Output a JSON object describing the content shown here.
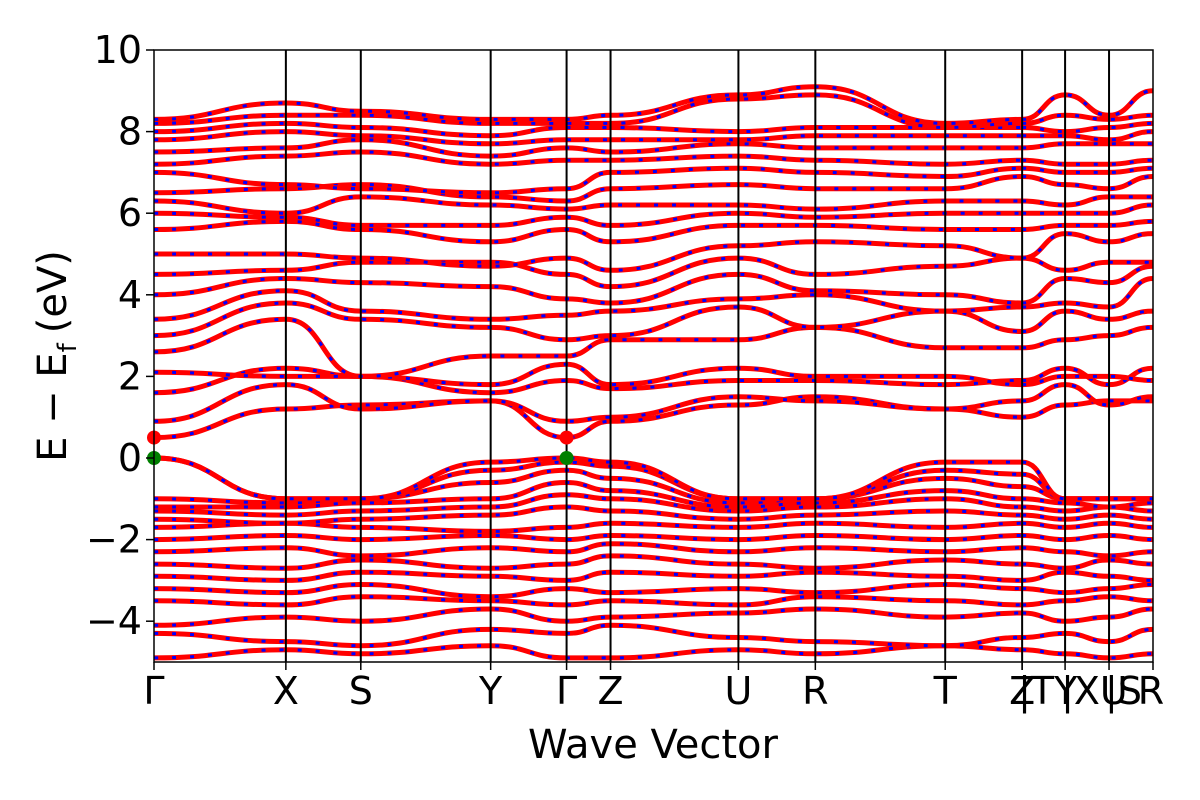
{
  "chart_data": {
    "type": "line",
    "xlabel": "Wave Vector",
    "ylabel_main": "E − E",
    "ylabel_sub": "f",
    "ylabel_unit": "(eV)",
    "ylim": [
      -5,
      10
    ],
    "yticks": [
      -4,
      -2,
      0,
      2,
      4,
      6,
      8,
      10
    ],
    "ytick_labels": [
      "−4",
      "−2",
      "0",
      "2",
      "4",
      "6",
      "8",
      "10"
    ],
    "kpath_labels": [
      "Γ",
      "X",
      "S",
      "Y",
      "Γ",
      "Z",
      "U",
      "R",
      "T",
      "Z",
      "|TY",
      "|XU",
      "|S",
      "R"
    ],
    "kpath_positions": [
      0,
      1.32,
      2.07,
      3.37,
      4.13,
      4.57,
      5.85,
      6.62,
      7.92,
      8.69,
      8.69,
      9.12,
      9.56,
      10.0
    ],
    "segment_breaks": [
      8.69,
      9.12,
      9.56
    ],
    "xlim": [
      0,
      10.0
    ],
    "colors": {
      "band": "#ff0000",
      "band_dash": "#0000ff",
      "vbm_marker": "#008000",
      "cbm_marker": "#ff0000",
      "kline": "#000000"
    },
    "vbm": [
      {
        "x": 0,
        "y": 0
      },
      {
        "x": 4.13,
        "y": 0
      }
    ],
    "cbm": [
      {
        "x": 0,
        "y": 0.5
      },
      {
        "x": 4.13,
        "y": 0.5
      }
    ],
    "bands": [
      {
        "y": [
          -4.9,
          -4.7,
          -4.8,
          -4.6,
          -4.9,
          -4.9,
          -4.7,
          -4.8,
          -4.6,
          -4.7,
          -4.7,
          -4.8,
          -4.9,
          -4.8
        ]
      },
      {
        "y": [
          -4.3,
          -4.5,
          -4.6,
          -4.2,
          -4.3,
          -4.1,
          -4.4,
          -4.5,
          -4.6,
          -4.4,
          -4.4,
          -4.3,
          -4.5,
          -4.2
        ]
      },
      {
        "y": [
          -4.1,
          -3.9,
          -4.0,
          -3.7,
          -4.0,
          -3.9,
          -3.8,
          -3.7,
          -3.9,
          -3.8,
          -3.8,
          -4.0,
          -3.9,
          -3.7
        ]
      },
      {
        "y": [
          -3.5,
          -3.6,
          -3.4,
          -3.5,
          -3.6,
          -3.5,
          -3.6,
          -3.4,
          -3.5,
          -3.6,
          -3.6,
          -3.5,
          -3.4,
          -3.5
        ]
      },
      {
        "y": [
          -3.2,
          -3.3,
          -3.1,
          -3.4,
          -3.2,
          -3.3,
          -3.2,
          -3.3,
          -3.1,
          -3.2,
          -3.2,
          -3.3,
          -3.2,
          -3.1
        ]
      },
      {
        "y": [
          -2.9,
          -3.0,
          -2.8,
          -2.9,
          -3.0,
          -2.8,
          -2.9,
          -2.8,
          -2.9,
          -3.0,
          -3.0,
          -2.8,
          -2.9,
          -3.0
        ]
      },
      {
        "y": [
          -2.6,
          -2.7,
          -2.5,
          -2.7,
          -2.6,
          -2.4,
          -2.6,
          -2.7,
          -2.5,
          -2.6,
          -2.6,
          -2.7,
          -2.5,
          -2.6
        ]
      },
      {
        "y": [
          -2.3,
          -2.2,
          -2.4,
          -2.2,
          -2.3,
          -2.1,
          -2.3,
          -2.2,
          -2.3,
          -2.2,
          -2.2,
          -2.3,
          -2.4,
          -2.3
        ]
      },
      {
        "y": [
          -2.0,
          -1.9,
          -2.0,
          -1.9,
          -2.0,
          -1.9,
          -2.0,
          -1.9,
          -2.0,
          -1.9,
          -1.9,
          -2.0,
          -1.9,
          -2.0
        ]
      },
      {
        "y": [
          -1.7,
          -1.6,
          -1.7,
          -1.8,
          -1.7,
          -1.6,
          -1.7,
          -1.6,
          -1.7,
          -1.6,
          -1.6,
          -1.7,
          -1.6,
          -1.7
        ]
      },
      {
        "y": [
          -1.5,
          -1.6,
          -1.5,
          -1.4,
          -1.2,
          -1.3,
          -1.5,
          -1.4,
          -1.3,
          -1.4,
          -1.4,
          -1.5,
          -1.4,
          -1.5
        ]
      },
      {
        "y": [
          -1.3,
          -1.4,
          -1.3,
          -1.2,
          -0.9,
          -1.0,
          -1.3,
          -1.2,
          -1.0,
          -1.2,
          -1.2,
          -1.3,
          -1.2,
          -1.3
        ]
      },
      {
        "y": [
          -1.2,
          -1.2,
          -1.1,
          -1.0,
          -0.6,
          -0.8,
          -1.2,
          -1.1,
          -0.8,
          -1.0,
          -1.0,
          -1.1,
          -1.2,
          -1.1
        ]
      },
      {
        "y": [
          -1.0,
          -1.1,
          -1.0,
          -0.6,
          -0.3,
          -0.5,
          -1.1,
          -1.0,
          -0.5,
          -0.7,
          -0.7,
          -1.0,
          -1.0,
          -1.0
        ]
      },
      {
        "y": [
          0.0,
          -1.0,
          -1.0,
          -0.3,
          -0.1,
          -0.2,
          -1.0,
          -1.0,
          -0.3,
          -0.4,
          -0.4,
          -1.0,
          -1.0,
          -1.0
        ]
      },
      {
        "y": [
          0.0,
          -1.0,
          -1.0,
          -0.1,
          0.0,
          -0.1,
          -1.0,
          -1.0,
          -0.1,
          -0.1,
          -0.1,
          -1.0,
          -1.0,
          -1.0
        ]
      },
      {
        "y": [
          0.5,
          1.2,
          1.3,
          1.4,
          0.5,
          0.9,
          1.3,
          1.5,
          1.2,
          1.0,
          1.0,
          1.3,
          1.4,
          1.4
        ]
      },
      {
        "y": [
          0.9,
          1.8,
          1.2,
          1.4,
          0.9,
          1.0,
          1.5,
          1.4,
          1.2,
          1.4,
          1.4,
          1.8,
          1.3,
          1.5
        ]
      },
      {
        "y": [
          1.6,
          2.2,
          2.0,
          1.6,
          1.9,
          1.7,
          1.9,
          1.9,
          1.8,
          1.9,
          1.9,
          2.2,
          1.8,
          2.2
        ]
      },
      {
        "y": [
          2.1,
          2.0,
          2.0,
          1.8,
          2.3,
          1.8,
          2.2,
          2.0,
          2.0,
          1.8,
          1.8,
          2.0,
          2.0,
          1.9
        ]
      },
      {
        "y": [
          2.6,
          3.4,
          2.0,
          2.5,
          2.5,
          2.9,
          2.9,
          3.2,
          2.7,
          2.7,
          2.7,
          2.9,
          3.0,
          3.2
        ]
      },
      {
        "y": [
          3.0,
          3.8,
          3.4,
          3.2,
          2.9,
          3.0,
          3.7,
          3.2,
          3.6,
          3.1,
          3.1,
          3.6,
          3.4,
          3.6
        ]
      },
      {
        "y": [
          3.4,
          4.1,
          3.6,
          3.4,
          3.5,
          3.6,
          3.9,
          4.0,
          3.6,
          3.7,
          3.7,
          3.8,
          3.7,
          4.4
        ]
      },
      {
        "y": [
          4.0,
          4.4,
          4.3,
          4.2,
          3.9,
          3.8,
          4.5,
          4.1,
          4.0,
          3.8,
          3.8,
          4.4,
          4.3,
          4.7
        ]
      },
      {
        "y": [
          4.5,
          4.6,
          4.8,
          4.8,
          4.5,
          4.2,
          4.9,
          4.5,
          4.7,
          4.9,
          4.9,
          4.6,
          4.8,
          4.8
        ]
      },
      {
        "y": [
          5.0,
          5.0,
          4.9,
          4.7,
          4.9,
          4.6,
          5.2,
          5.3,
          5.2,
          4.9,
          4.9,
          5.5,
          5.3,
          5.5
        ]
      },
      {
        "y": [
          5.6,
          5.8,
          5.6,
          5.3,
          5.6,
          5.3,
          5.7,
          5.7,
          5.6,
          5.6,
          5.6,
          5.7,
          5.7,
          5.8
        ]
      },
      {
        "y": [
          6.0,
          5.9,
          5.7,
          5.7,
          5.9,
          5.7,
          6.0,
          5.9,
          6.0,
          6.0,
          6.0,
          6.0,
          6.0,
          6.2
        ]
      },
      {
        "y": [
          6.3,
          6.0,
          6.4,
          6.2,
          6.1,
          6.2,
          6.2,
          6.1,
          6.3,
          6.3,
          6.3,
          6.2,
          6.4,
          6.4
        ]
      },
      {
        "y": [
          6.5,
          6.6,
          6.7,
          6.4,
          6.3,
          6.6,
          6.7,
          6.6,
          6.6,
          6.9,
          6.9,
          6.7,
          6.6,
          6.9
        ]
      },
      {
        "y": [
          7.0,
          6.7,
          6.6,
          6.5,
          6.6,
          7.0,
          7.1,
          7.0,
          6.9,
          7.1,
          7.1,
          7.0,
          7.0,
          7.1
        ]
      },
      {
        "y": [
          7.2,
          7.4,
          7.5,
          7.2,
          7.3,
          7.3,
          7.4,
          7.3,
          7.2,
          7.3,
          7.3,
          7.2,
          7.2,
          7.3
        ]
      },
      {
        "y": [
          7.5,
          7.6,
          7.8,
          7.4,
          7.6,
          7.5,
          7.7,
          7.6,
          7.6,
          7.6,
          7.6,
          7.7,
          7.7,
          7.7
        ]
      },
      {
        "y": [
          7.8,
          8.0,
          7.9,
          7.7,
          7.8,
          7.8,
          7.8,
          7.9,
          7.9,
          7.9,
          7.9,
          7.9,
          7.8,
          8.0
        ]
      },
      {
        "y": [
          8.0,
          8.2,
          8.1,
          7.9,
          8.1,
          8.1,
          8.0,
          8.1,
          8.1,
          8.1,
          8.1,
          8.0,
          8.1,
          8.2
        ]
      },
      {
        "y": [
          8.2,
          8.4,
          8.4,
          8.2,
          8.2,
          8.2,
          8.8,
          8.9,
          8.1,
          8.2,
          8.2,
          8.4,
          8.3,
          8.4
        ]
      },
      {
        "y": [
          8.3,
          8.7,
          8.5,
          8.3,
          8.3,
          8.4,
          8.9,
          9.1,
          8.2,
          8.3,
          8.3,
          8.9,
          8.4,
          9.0
        ]
      }
    ]
  }
}
